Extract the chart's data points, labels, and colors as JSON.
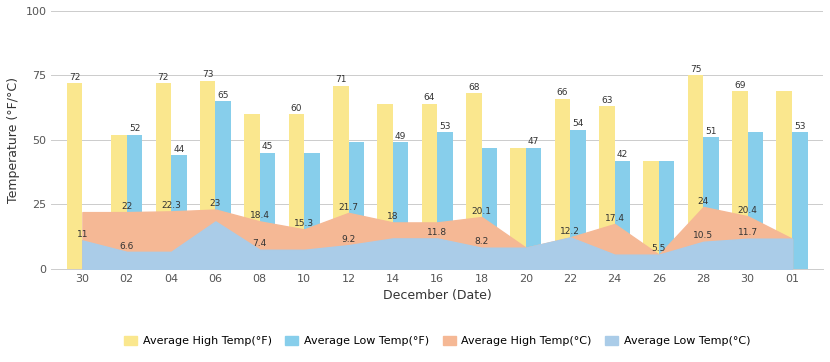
{
  "x_tick_labels": [
    "30",
    "02",
    "04",
    "06",
    "08",
    "10",
    "12",
    "14",
    "16",
    "18",
    "20",
    "22",
    "24",
    "26",
    "28",
    "30",
    "01"
  ],
  "high_f": [
    72,
    52,
    72,
    73,
    60,
    60,
    71,
    64,
    64,
    68,
    47,
    66,
    63,
    42,
    75,
    69,
    69
  ],
  "low_f": [
    11,
    52,
    44,
    65,
    45,
    45,
    49,
    49,
    53,
    47,
    47,
    54,
    42,
    42,
    51,
    53,
    53
  ],
  "high_c": [
    22,
    22,
    22.3,
    23,
    18.4,
    15.3,
    21.7,
    18,
    18,
    20.1,
    8.2,
    12.2,
    17.4,
    5.5,
    24,
    20.4,
    11.7
  ],
  "low_c": [
    11,
    6.6,
    6.6,
    18.4,
    7.4,
    7.4,
    9.2,
    11.8,
    11.8,
    8.2,
    8.2,
    12.2,
    5.5,
    5.5,
    10.5,
    11.7,
    11.7
  ],
  "bar_high_f_color": "#FAE78E",
  "bar_low_f_color": "#87CEEB",
  "area_high_c_color": "#F5B895",
  "area_low_c_color": "#AACCE8",
  "xlabel": "December (Date)",
  "ylabel": "Temperature (°F/°C)",
  "ylim": [
    0,
    100
  ],
  "yticks": [
    0,
    25,
    50,
    75,
    100
  ],
  "bg_color": "#FFFFFF",
  "label_high_f": "Average High Temp(°F)",
  "label_low_f": "Average Low Temp(°F)",
  "label_high_c": "Average High Temp(°C)",
  "label_low_c": "Average Low Temp(°C)",
  "ann_high_f": [
    72,
    null,
    72,
    73,
    null,
    60,
    71,
    null,
    64,
    68,
    null,
    66,
    63,
    null,
    75,
    69,
    null
  ],
  "ann_low_f": [
    null,
    52,
    44,
    65,
    45,
    null,
    null,
    49,
    53,
    null,
    47,
    54,
    42,
    null,
    51,
    null,
    53
  ],
  "ann_high_c": [
    null,
    22,
    22.3,
    23,
    18.4,
    15.3,
    21.7,
    18,
    null,
    20.1,
    null,
    12.2,
    17.4,
    5.5,
    24,
    20.4,
    null
  ],
  "ann_low_c": [
    11,
    6.6,
    null,
    null,
    7.4,
    null,
    9.2,
    null,
    11.8,
    8.2,
    null,
    null,
    null,
    null,
    10.5,
    11.7,
    null
  ]
}
